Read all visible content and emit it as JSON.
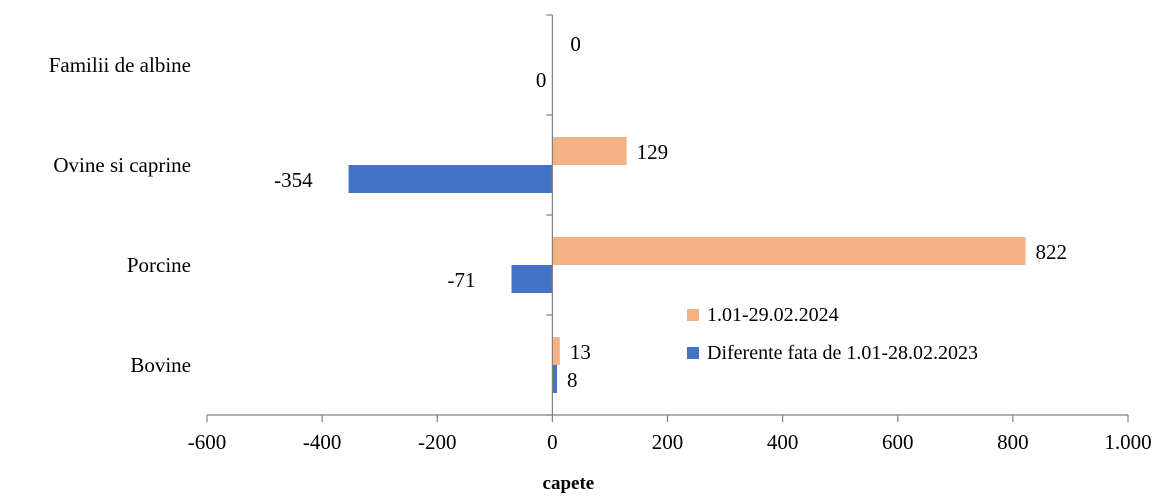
{
  "chart_data": {
    "type": "bar",
    "orientation": "horizontal",
    "categories": [
      "Bovine",
      "Porcine",
      "Ovine si caprine",
      "Familii de albine"
    ],
    "series": [
      {
        "name": "1.01-29.02.2024",
        "color": "#F4B183",
        "values": [
          13,
          822,
          129,
          0
        ],
        "labels": [
          "13",
          "822",
          "129",
          "0"
        ]
      },
      {
        "name": "Diferente fata de 1.01-28.02.2023",
        "color": "#4472C4",
        "values": [
          8,
          -71,
          -354,
          0
        ],
        "labels": [
          "8",
          "-71",
          "-354",
          "0"
        ]
      }
    ],
    "xlim": [
      -600,
      1000
    ],
    "xticks": [
      -600,
      -400,
      -200,
      0,
      200,
      400,
      600,
      800,
      1000
    ],
    "xtick_labels": [
      "-600",
      "-400",
      "-200",
      "0",
      "200",
      "400",
      "600",
      "800",
      "1.000"
    ],
    "xlabel": "capete",
    "ylabel": "",
    "grid": false,
    "legend_position": "inside-right"
  }
}
